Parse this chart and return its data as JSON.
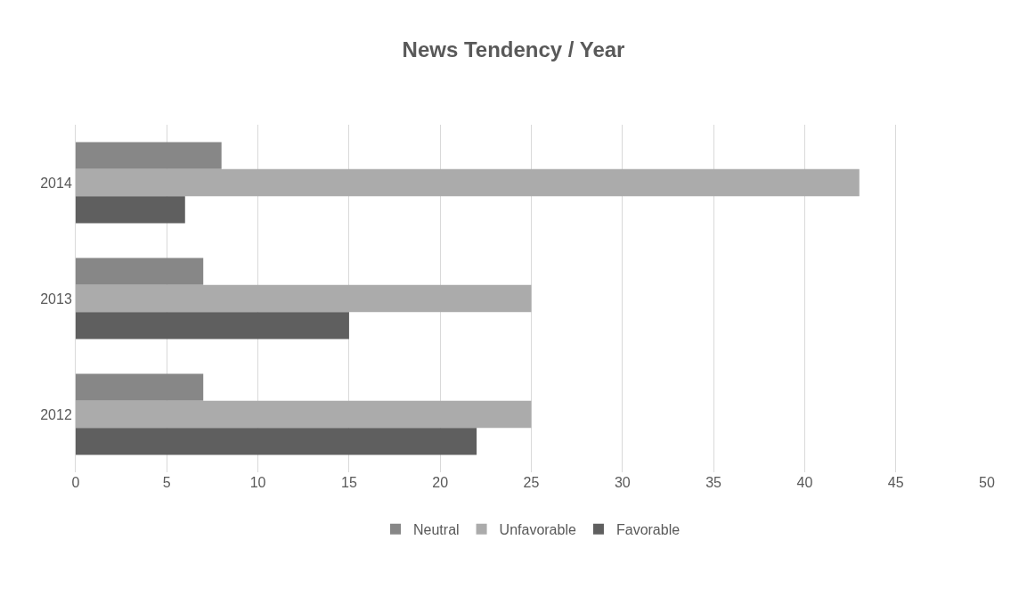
{
  "chart_data": {
    "type": "bar",
    "orientation": "horizontal",
    "title": "News Tendency / Year",
    "categories": [
      "2014",
      "2013",
      "2012"
    ],
    "series": [
      {
        "name": "Neutral",
        "color": "#878787",
        "values": [
          8,
          7,
          7
        ]
      },
      {
        "name": "Unfavorable",
        "color": "#ababab",
        "values": [
          43,
          25,
          25
        ]
      },
      {
        "name": "Favorable",
        "color": "#5f5f5f",
        "values": [
          6,
          15,
          22
        ]
      }
    ],
    "xlim": [
      0,
      50
    ],
    "xticks": [
      0,
      5,
      10,
      15,
      20,
      25,
      30,
      35,
      40,
      45,
      50
    ],
    "grid": "x",
    "legend": "bottom"
  }
}
